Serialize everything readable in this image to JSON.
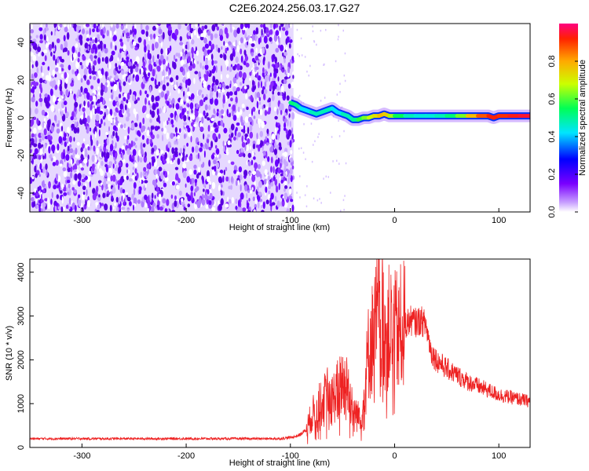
{
  "title": "C2E6.2024.256.03.17.G27",
  "chart_data": [
    {
      "type": "heatmap",
      "xlabel": "Height of straight line (km)",
      "ylabel": "Frequency (Hz)",
      "xlim": [
        -350,
        130
      ],
      "ylim": [
        -50,
        50
      ],
      "xticks": [
        -300,
        -200,
        -100,
        0,
        100
      ],
      "yticks": [
        -40,
        -20,
        0,
        20,
        40
      ],
      "noise_region_x": [
        -350,
        -97
      ],
      "signal_trace": {
        "x": [
          -100,
          -95,
          -90,
          -85,
          -80,
          -75,
          -70,
          -65,
          -60,
          -55,
          -50,
          -45,
          -40,
          -35,
          -30,
          -25,
          -20,
          -15,
          -10,
          -5,
          0,
          10,
          20,
          30,
          40,
          50,
          60,
          70,
          80,
          90,
          95,
          100,
          110,
          120,
          130
        ],
        "y": [
          8,
          7,
          5,
          4,
          3,
          2,
          3,
          4,
          5,
          3,
          2,
          1,
          -1,
          -1,
          0,
          0,
          1,
          1,
          2,
          1,
          1,
          1,
          1,
          1,
          1,
          1,
          1,
          1,
          1,
          1,
          0,
          1,
          1,
          1,
          1
        ],
        "amplitude": [
          0.5,
          0.55,
          0.45,
          0.4,
          0.45,
          0.5,
          0.45,
          0.5,
          0.45,
          0.4,
          0.45,
          0.5,
          0.45,
          0.55,
          0.6,
          0.65,
          0.7,
          0.75,
          0.8,
          0.7,
          0.6,
          0.5,
          0.45,
          0.45,
          0.45,
          0.5,
          0.55,
          0.7,
          0.85,
          0.9,
          0.95,
          0.9,
          0.92,
          0.95,
          0.95
        ]
      },
      "colorbar": {
        "label": "Normalized spectral amplitude",
        "range": [
          0,
          1
        ],
        "ticks": [
          "0.0",
          "0.2",
          "0.4",
          "0.6",
          "0.8"
        ]
      }
    },
    {
      "type": "line",
      "xlabel": "Height of straight line (km)",
      "ylabel": "SNR (10 * v/v)",
      "xlim": [
        -350,
        130
      ],
      "ylim": [
        0,
        4300
      ],
      "xticks": [
        -300,
        -200,
        -100,
        0,
        100
      ],
      "yticks": [
        0,
        1000,
        2000,
        3000,
        4000
      ],
      "series": [
        {
          "color": "#ee2222",
          "x": [
            -350,
            -300,
            -250,
            -200,
            -150,
            -110,
            -100,
            -95,
            -90,
            -85,
            -80,
            -75,
            -70,
            -65,
            -60,
            -55,
            -50,
            -45,
            -40,
            -35,
            -30,
            -25,
            -20,
            -15,
            -10,
            -5,
            0,
            5,
            10,
            15,
            20,
            25,
            30,
            35,
            40,
            50,
            60,
            70,
            80,
            90,
            100,
            110,
            120,
            130
          ],
          "y": [
            200,
            200,
            200,
            200,
            200,
            200,
            230,
            250,
            300,
            400,
            700,
            900,
            1000,
            1200,
            1100,
            1300,
            1500,
            1400,
            900,
            700,
            1000,
            2200,
            2600,
            3100,
            2800,
            2700,
            2600,
            2700,
            2800,
            2900,
            2850,
            2900,
            2800,
            2200,
            2000,
            1800,
            1650,
            1500,
            1400,
            1300,
            1200,
            1150,
            1100,
            1050
          ]
        }
      ]
    }
  ],
  "colors": {
    "noise_purple": "#6a00ff",
    "noise_light": "#c9a8ff",
    "line_red": "#ee2222"
  }
}
